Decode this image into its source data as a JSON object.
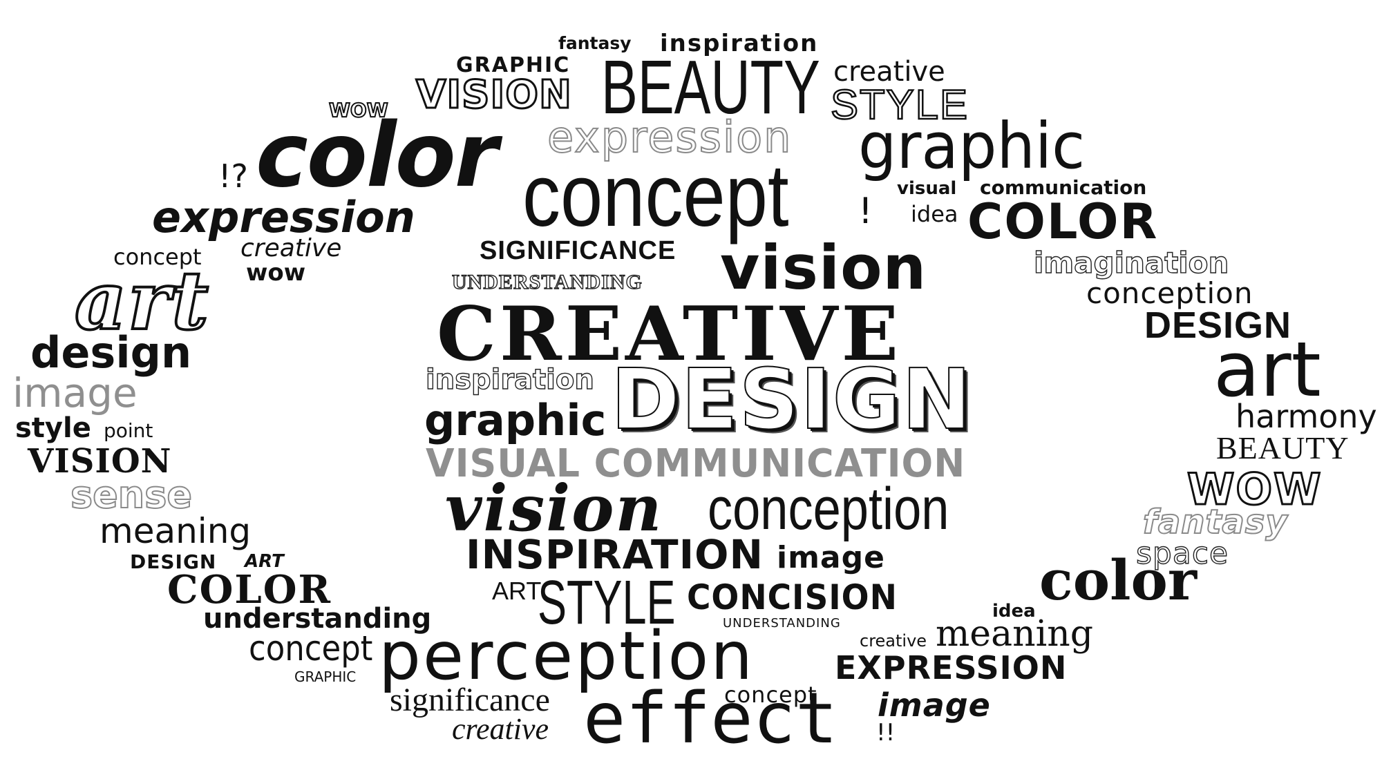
{
  "words": [
    {
      "id": "fantasy-top",
      "text": "fantasy"
    },
    {
      "id": "inspiration-top",
      "text": "inspiration"
    },
    {
      "id": "graphic-caps-top",
      "text": "GRAPHIC"
    },
    {
      "id": "vision-caps-top",
      "text": "VISION"
    },
    {
      "id": "beauty-caps-top",
      "text": "BEAUTY"
    },
    {
      "id": "creative-top-right",
      "text": "creative"
    },
    {
      "id": "style-caps-top",
      "text": "STYLE"
    },
    {
      "id": "wow-top-left",
      "text": "WOW"
    },
    {
      "id": "color-big",
      "text": "color"
    },
    {
      "id": "expression-outline",
      "text": "expression"
    },
    {
      "id": "graphic-big",
      "text": "graphic"
    },
    {
      "id": "concept-big",
      "text": "concept"
    },
    {
      "id": "exclaim-question",
      "text": "!?"
    },
    {
      "id": "exclaim-single",
      "text": "!"
    },
    {
      "id": "visual-small",
      "text": "visual"
    },
    {
      "id": "communication-small",
      "text": "communication"
    },
    {
      "id": "idea-right",
      "text": "idea"
    },
    {
      "id": "color-caps-right",
      "text": "COLOR"
    },
    {
      "id": "expression-left",
      "text": "expression"
    },
    {
      "id": "concept-left",
      "text": "concept"
    },
    {
      "id": "creative-left",
      "text": "creative"
    },
    {
      "id": "wow-left",
      "text": "wow"
    },
    {
      "id": "significance-caps",
      "text": "SIGNIFICANCE"
    },
    {
      "id": "understanding-caps",
      "text": "UNDERSTANDING"
    },
    {
      "id": "vision-mid",
      "text": "vision"
    },
    {
      "id": "imagination",
      "text": "imagination"
    },
    {
      "id": "conception-right",
      "text": "conception"
    },
    {
      "id": "art-left",
      "text": "art"
    },
    {
      "id": "creative-caps-center",
      "text": "CREATIVE"
    },
    {
      "id": "design-caps-right",
      "text": "DESIGN"
    },
    {
      "id": "design-left",
      "text": "design"
    },
    {
      "id": "art-right",
      "text": "art"
    },
    {
      "id": "image-left",
      "text": "image"
    },
    {
      "id": "inspiration-mid",
      "text": "inspiration"
    },
    {
      "id": "design-caps-center",
      "text": "DESIGN"
    },
    {
      "id": "graphic-mid",
      "text": "graphic"
    },
    {
      "id": "harmony",
      "text": "harmony"
    },
    {
      "id": "style-left",
      "text": "style"
    },
    {
      "id": "point",
      "text": "point"
    },
    {
      "id": "beauty-caps-right",
      "text": "BEAUTY"
    },
    {
      "id": "vision-caps-left",
      "text": "VISION"
    },
    {
      "id": "visual-communication-caps",
      "text": "VISUAL COMMUNICATION"
    },
    {
      "id": "wow-caps-right",
      "text": "WOW"
    },
    {
      "id": "sense",
      "text": "sense"
    },
    {
      "id": "vision-center",
      "text": "vision"
    },
    {
      "id": "conception-center",
      "text": "conception"
    },
    {
      "id": "fantasy-right",
      "text": "fantasy"
    },
    {
      "id": "meaning-left",
      "text": "meaning"
    },
    {
      "id": "space",
      "text": "space"
    },
    {
      "id": "design-caps-small",
      "text": "DESIGN"
    },
    {
      "id": "art-caps-small",
      "text": "ART"
    },
    {
      "id": "inspiration-caps",
      "text": "INSPIRATION"
    },
    {
      "id": "image-center",
      "text": "image"
    },
    {
      "id": "color-caps-left",
      "text": "COLOR"
    },
    {
      "id": "art-caps-center",
      "text": "ART"
    },
    {
      "id": "style-caps-center",
      "text": "STYLE"
    },
    {
      "id": "concision-caps",
      "text": "CONCISION"
    },
    {
      "id": "color-right",
      "text": "color"
    },
    {
      "id": "understanding-left",
      "text": "understanding"
    },
    {
      "id": "idea-bottom",
      "text": "idea"
    },
    {
      "id": "understanding-caps-small",
      "text": "UNDERSTANDING"
    },
    {
      "id": "creative-bottom-right",
      "text": "creative"
    },
    {
      "id": "meaning-right",
      "text": "meaning"
    },
    {
      "id": "concept-bottom-left",
      "text": "concept"
    },
    {
      "id": "perception",
      "text": "perception"
    },
    {
      "id": "expression-caps",
      "text": "EXPRESSION"
    },
    {
      "id": "graphic-caps-small",
      "text": "GRAPHIC"
    },
    {
      "id": "concept-small-bottom",
      "text": "concept"
    },
    {
      "id": "significance-bottom",
      "text": "significance"
    },
    {
      "id": "image-bottom",
      "text": "image"
    },
    {
      "id": "effect",
      "text": "effect"
    },
    {
      "id": "creative-bottom",
      "text": "creative"
    },
    {
      "id": "double-exclaim",
      "text": "!!"
    }
  ]
}
